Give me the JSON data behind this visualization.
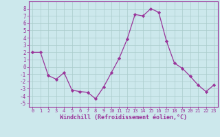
{
  "x": [
    0,
    1,
    2,
    3,
    4,
    5,
    6,
    7,
    8,
    9,
    10,
    11,
    12,
    13,
    14,
    15,
    16,
    17,
    18,
    19,
    20,
    21,
    22,
    23
  ],
  "y": [
    2.0,
    2.0,
    -1.2,
    -1.7,
    -0.8,
    -3.2,
    -3.4,
    -3.5,
    -4.4,
    -2.8,
    -0.8,
    1.2,
    3.8,
    7.2,
    7.0,
    8.0,
    7.5,
    3.5,
    0.5,
    -0.2,
    -1.3,
    -2.5,
    -3.4,
    -2.5
  ],
  "xlim": [
    -0.5,
    23.5
  ],
  "ylim": [
    -5.5,
    9.0
  ],
  "yticks": [
    -5,
    -4,
    -3,
    -2,
    -1,
    0,
    1,
    2,
    3,
    4,
    5,
    6,
    7,
    8
  ],
  "xticks": [
    0,
    1,
    2,
    3,
    4,
    5,
    6,
    7,
    8,
    9,
    10,
    11,
    12,
    13,
    14,
    15,
    16,
    17,
    18,
    19,
    20,
    21,
    22,
    23
  ],
  "xlabel": "Windchill (Refroidissement éolien,°C)",
  "line_color": "#993399",
  "marker_color": "#993399",
  "bg_color": "#cce8ec",
  "grid_color": "#aacccc",
  "text_color": "#993399",
  "tick_color": "#993399",
  "spine_color": "#993399"
}
